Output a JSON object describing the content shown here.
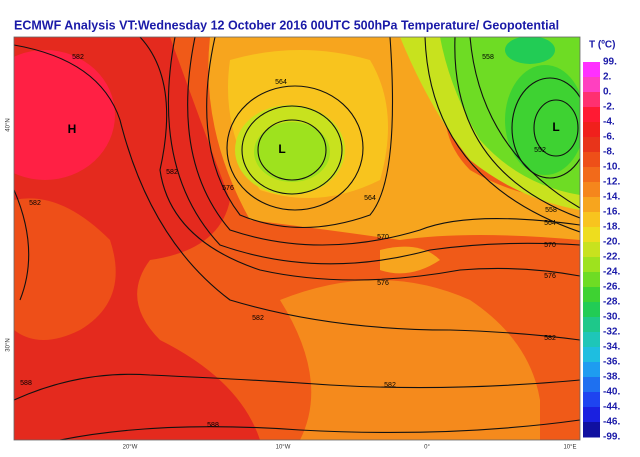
{
  "header": {
    "title": "ECMWF  Analysis VT:Wednesday 12 October 2016 00UTC 500hPa Temperature/  Geopotential"
  },
  "legend": {
    "title": "T (ºC)",
    "labels": [
      "99.",
      "2.",
      "0.",
      "-2.",
      "-4.",
      "-6.",
      "-8.",
      "-10.",
      "-12.",
      "-14.",
      "-16.",
      "-18.",
      "-20.",
      "-22.",
      "-24.",
      "-26.",
      "-28.",
      "-30.",
      "-32.",
      "-34.",
      "-36.",
      "-38.",
      "-40.",
      "-44.",
      "-46.",
      "-99."
    ],
    "colors": [
      "#ff30ff",
      "#ff40c0",
      "#ff3070",
      "#ff1a33",
      "#f0201c",
      "#e8341a",
      "#ee4f18",
      "#f26a1a",
      "#f5861c",
      "#f7a51e",
      "#f8c41e",
      "#eedd1e",
      "#c8e21e",
      "#9ee21e",
      "#6edc24",
      "#3ed232",
      "#22cc55",
      "#1ec88a",
      "#1ec6b8",
      "#1ebee0",
      "#1e9cf0",
      "#1e70f0",
      "#1e44f0",
      "#1a20e0",
      "#1010a0"
    ]
  },
  "map": {
    "pressure_labels": [
      {
        "text": "H",
        "x": 72,
        "y": 130
      },
      {
        "text": "L",
        "x": 282,
        "y": 150
      },
      {
        "text": "L",
        "x": 556,
        "y": 128
      }
    ],
    "contour_labels": [
      "582",
      "582",
      "582",
      "576",
      "564",
      "564",
      "570",
      "576",
      "582",
      "582",
      "588",
      "588",
      "582",
      "576",
      "570",
      "564",
      "558",
      "552",
      "558"
    ],
    "lon_labels": [
      "20°W",
      "10°W",
      "0°",
      "10°E"
    ],
    "lat_labels": [
      "40°N",
      "30°N"
    ]
  }
}
